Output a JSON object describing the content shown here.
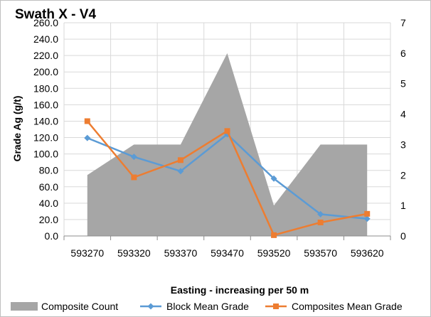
{
  "chart_data": {
    "type": "line",
    "title": "Swath X - V4",
    "xlabel": "Easting - increasing per 50 m",
    "ylabel": "Grade Ag (g/t)",
    "y2label": "",
    "categories": [
      "593270",
      "593320",
      "593370",
      "593470",
      "593520",
      "593570",
      "593620"
    ],
    "ylim": [
      0,
      260
    ],
    "yticks": [
      "0.0",
      "20.0",
      "40.0",
      "60.0",
      "80.0",
      "100.0",
      "120.0",
      "140.0",
      "160.0",
      "180.0",
      "200.0",
      "220.0",
      "240.0",
      "260.0"
    ],
    "y2lim": [
      0,
      7
    ],
    "y2ticks": [
      "0",
      "1",
      "2",
      "3",
      "4",
      "5",
      "6",
      "7"
    ],
    "grid": true,
    "legend_position": "bottom",
    "series": [
      {
        "name": "Composite Count",
        "type": "area",
        "axis": "secondary",
        "color": "#a6a6a6",
        "values": [
          2,
          3,
          3,
          6,
          1,
          3,
          3
        ]
      },
      {
        "name": "Block Mean Grade",
        "type": "line",
        "axis": "primary",
        "color": "#5b9bd5",
        "marker": "diamond",
        "values": [
          119.5,
          96.5,
          79.0,
          124.0,
          70.0,
          26.5,
          21.0
        ]
      },
      {
        "name": "Composites Mean Grade",
        "type": "line",
        "axis": "primary",
        "color": "#ed7d31",
        "marker": "square",
        "values": [
          140.0,
          71.5,
          92.5,
          128.0,
          1.0,
          16.5,
          27.0
        ]
      }
    ]
  }
}
